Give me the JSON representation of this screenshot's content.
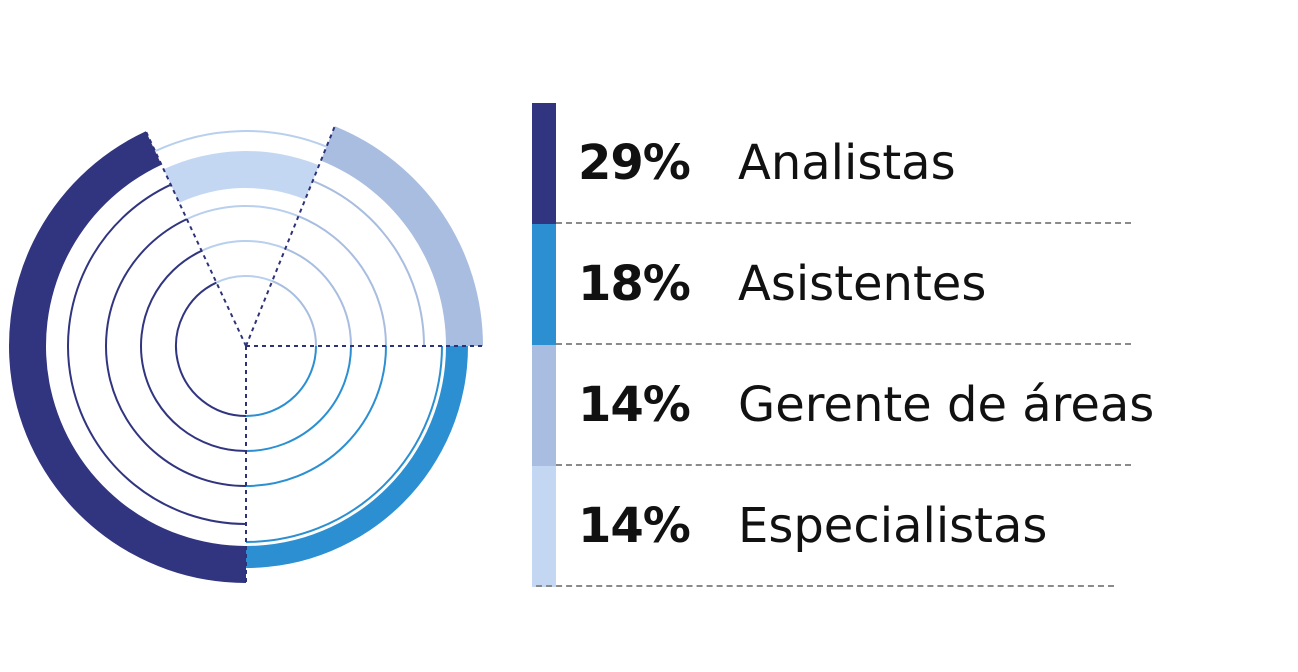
{
  "chart_data": {
    "type": "radial-bar",
    "series": [
      {
        "name": "Analistas",
        "value": 29,
        "label": "29%",
        "color": "#31357f"
      },
      {
        "name": "Asistentes",
        "value": 18,
        "label": "18%",
        "color": "#2b8fd2"
      },
      {
        "name": "Gerente de áreas",
        "value": 14,
        "label": "14%",
        "color": "#a8bde0"
      },
      {
        "name": "Especialistas",
        "value": 14,
        "label": "14%",
        "color": "#c4d7f2"
      }
    ],
    "legend_position": "right"
  }
}
